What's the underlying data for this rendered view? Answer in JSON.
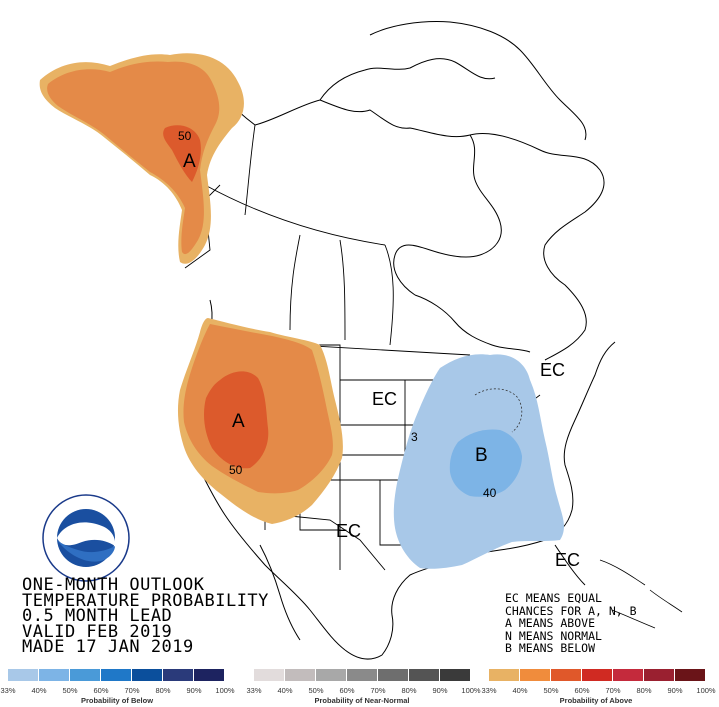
{
  "map": {
    "labels": {
      "alaska_letter": "A",
      "alaska_contour": "50",
      "west_letter": "A",
      "west_contour": "50",
      "central_ec": "EC",
      "northeast_ec": "EC",
      "southwest_ec": "EC",
      "southeast_ec": "EC",
      "east_letter": "B",
      "east_contour_40": "40",
      "east_contour_33": "3"
    }
  },
  "title_block": {
    "line1": "ONE-MONTH OUTLOOK",
    "line2": "TEMPERATURE PROBABILITY",
    "line3": "0.5 MONTH LEAD",
    "line4": "VALID FEB 2019",
    "line5": "MADE 17 JAN 2019"
  },
  "legend_notes": {
    "line1": "EC MEANS EQUAL",
    "line2": "CHANCES FOR A, N, B",
    "line3": "A MEANS ABOVE",
    "line4": "N MEANS NORMAL",
    "line5": "B MEANS BELOW"
  },
  "logo": {
    "text": "NOAA",
    "ring_text": "NATIONAL OCEANIC AND ATMOSPHERIC ADMINISTRATION · U.S. DEPARTMENT OF COMMERCE"
  },
  "scales": {
    "below": {
      "title": "Probability of Below",
      "ticks": [
        "33%",
        "40%",
        "50%",
        "60%",
        "70%",
        "80%",
        "90%",
        "100%"
      ],
      "colors": [
        "#a8c8e8",
        "#7db4e6",
        "#4a9ad8",
        "#1f78c8",
        "#0b4f9c",
        "#2a3a7a",
        "#1d2360"
      ]
    },
    "near_normal": {
      "title": "Probability of Near-Normal",
      "ticks": [
        "33%",
        "40%",
        "50%",
        "60%",
        "70%",
        "80%",
        "90%",
        "100%"
      ],
      "colors": [
        "#e2dcdc",
        "#c2bcbc",
        "#a8a8a8",
        "#8a8a8a",
        "#6e6e6e",
        "#545454",
        "#3a3a3a"
      ]
    },
    "above": {
      "title": "Probability of Above",
      "ticks": [
        "33%",
        "40%",
        "50%",
        "60%",
        "70%",
        "80%",
        "90%",
        "100%"
      ],
      "colors": [
        "#e8b264",
        "#f08c3c",
        "#e0582a",
        "#d02a22",
        "#c42a3c",
        "#9a2030",
        "#6a1418"
      ]
    }
  },
  "colors": {
    "above_33": "#e8b264",
    "above_40": "#e48a48",
    "above_50": "#dc5a2c",
    "below_33": "#a8c8e8",
    "below_40": "#7db4e6"
  }
}
